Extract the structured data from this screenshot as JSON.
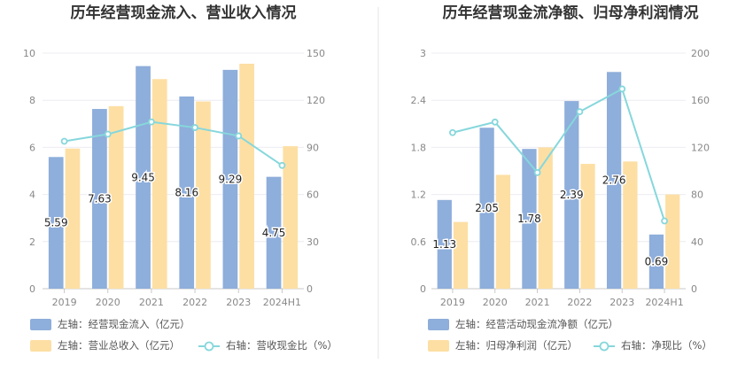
{
  "chart_data": [
    {
      "type": "bar",
      "title": "历年经营现金流入、营业收入情况",
      "categories": [
        "2019",
        "2020",
        "2021",
        "2022",
        "2023",
        "2024H1"
      ],
      "left_axis": {
        "ticks": [
          "0",
          "2",
          "4",
          "6",
          "8",
          "10"
        ],
        "ylim": [
          0,
          10
        ]
      },
      "right_axis": {
        "ticks": [
          "0",
          "30",
          "60",
          "90",
          "120",
          "150"
        ],
        "ylim": [
          0,
          150
        ]
      },
      "series": [
        {
          "name": "左轴：经营现金流入（亿元）",
          "kind": "bar",
          "axis": "left",
          "color": "#8eaedb",
          "values": [
            5.59,
            7.63,
            9.45,
            8.16,
            9.29,
            4.75
          ],
          "labels": [
            "5.59",
            "7.63",
            "9.45",
            "8.16",
            "9.29",
            "4.75"
          ]
        },
        {
          "name": "左轴：营业总收入（亿元）",
          "kind": "bar",
          "axis": "left",
          "color": "#fddfa4",
          "values": [
            5.95,
            7.75,
            8.9,
            7.95,
            9.55,
            6.05
          ]
        },
        {
          "name": "右轴：营收现金比（%）",
          "kind": "line",
          "axis": "right",
          "color": "#86d7dc",
          "values": [
            93.9,
            98.4,
            106.2,
            102.6,
            97.3,
            78.5
          ]
        }
      ],
      "grid": true,
      "legend_position": "bottom"
    },
    {
      "type": "bar",
      "title": "历年经营现金流净额、归母净利润情况",
      "categories": [
        "2019",
        "2020",
        "2021",
        "2022",
        "2023",
        "2024H1"
      ],
      "left_axis": {
        "ticks": [
          "0",
          "0.6",
          "1.2",
          "1.8",
          "2.4",
          "3"
        ],
        "ylim": [
          0,
          3
        ]
      },
      "right_axis": {
        "ticks": [
          "0",
          "40",
          "80",
          "120",
          "160",
          "200"
        ],
        "ylim": [
          0,
          200
        ]
      },
      "series": [
        {
          "name": "左轴：经营活动现金流净额（亿元）",
          "kind": "bar",
          "axis": "left",
          "color": "#8eaedb",
          "values": [
            1.13,
            2.05,
            1.78,
            2.39,
            2.76,
            0.69
          ],
          "labels": [
            "1.13",
            "2.05",
            "1.78",
            "2.39",
            "2.76",
            "0.69"
          ]
        },
        {
          "name": "左轴：归母净利润（亿元）",
          "kind": "bar",
          "axis": "left",
          "color": "#fddfa4",
          "values": [
            0.85,
            1.45,
            1.8,
            1.59,
            1.62,
            1.2
          ]
        },
        {
          "name": "右轴：净现比（%）",
          "kind": "line",
          "axis": "right",
          "color": "#86d7dc",
          "values": [
            132.5,
            141.5,
            98.6,
            150.3,
            169.6,
            57.5
          ]
        }
      ],
      "grid": true,
      "legend_position": "bottom"
    }
  ]
}
